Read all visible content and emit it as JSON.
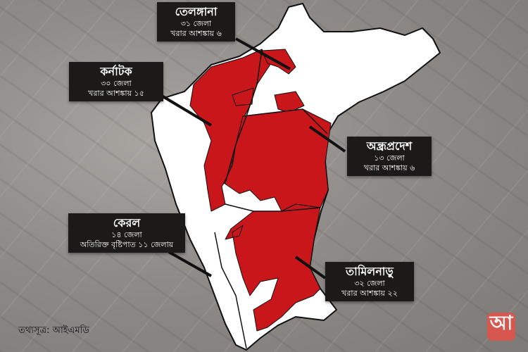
{
  "colors": {
    "drought": "#c8161b",
    "land": "#ffffff",
    "box": "#1b1a19",
    "logo": "#e0524c"
  },
  "callouts": [
    {
      "state": "তেলঙ্গানা",
      "districts": "৩১ জেলা",
      "note": "খরার আশঙ্কায় ৬"
    },
    {
      "state": "কর্নাটক",
      "districts": "৩০ জেলা",
      "note": "খরার আশঙ্কায় ১৫"
    },
    {
      "state": "অন্ধ্রপ্রদেশ",
      "districts": "১৩ জেলা",
      "note": "খরার আশঙ্কায় ৬"
    },
    {
      "state": "কেরল",
      "districts": "১৪ জেলা",
      "note": "অতিরিক্ত বৃষ্টিপাত ১১ জেলায়"
    },
    {
      "state": "তামিলনাড়ু",
      "districts": "৩২ জেলা",
      "note": "খরার আশঙ্কায় ২২"
    }
  ],
  "source": "তথ্যসূত্র: আইএমডি",
  "logo": "আ"
}
